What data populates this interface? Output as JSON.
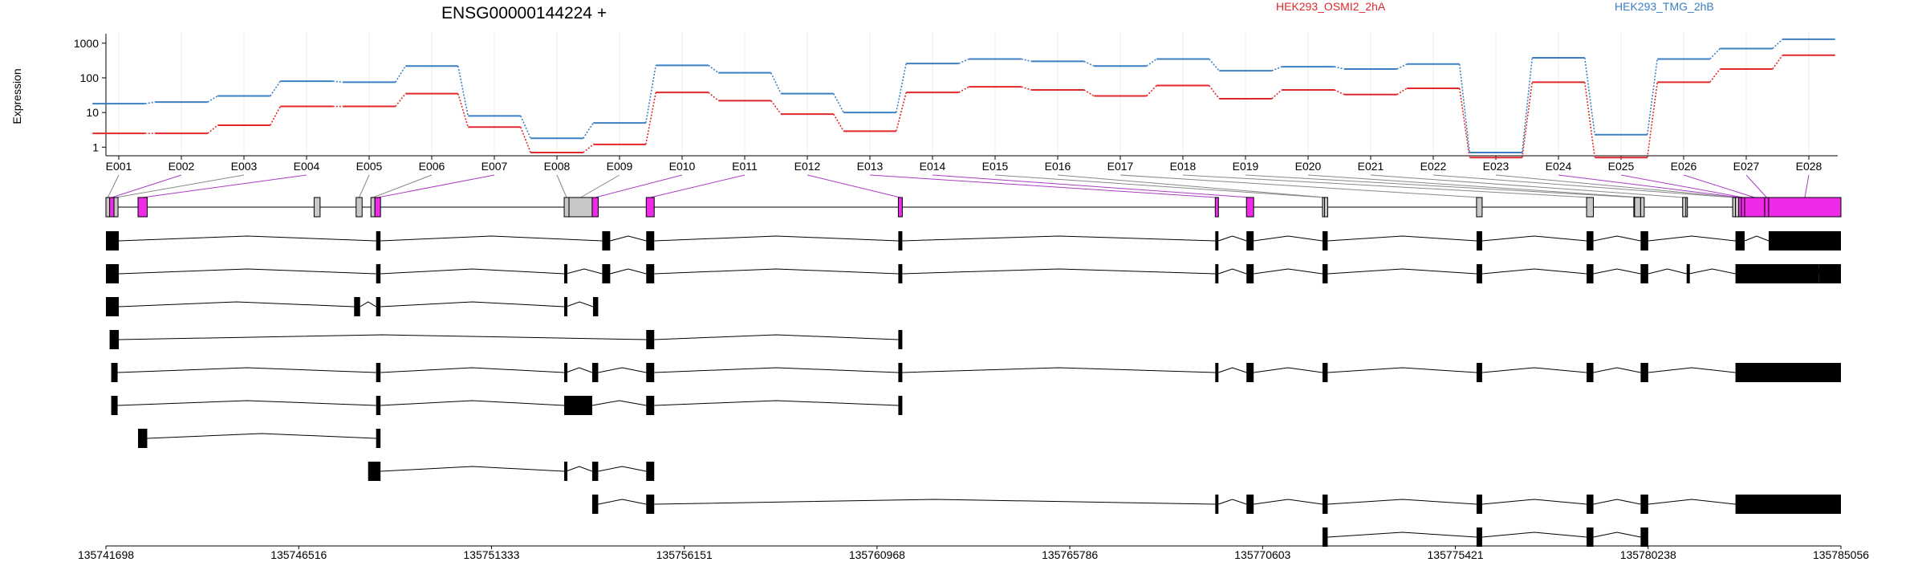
{
  "chart_data": {
    "type": "line",
    "title": "ENSG00000144224 +",
    "ylabel": "Expression",
    "y_scale": "log",
    "y_ticks": [
      "1",
      "10",
      "100",
      "1000"
    ],
    "ylim": [
      0.7,
      1600
    ],
    "grid": true,
    "legend_placement": "top-right",
    "categories": [
      "E001",
      "E002",
      "E003",
      "E004",
      "E005",
      "E006",
      "E007",
      "E008",
      "E009",
      "E010",
      "E011",
      "E012",
      "E013",
      "E014",
      "E015",
      "E016",
      "E017",
      "E018",
      "E019",
      "E020",
      "E021",
      "E022",
      "E023",
      "E024",
      "E025",
      "E026",
      "E027",
      "E028"
    ],
    "series": [
      {
        "name": "HEK293_OSMI2_2hA",
        "color": "#e0282b",
        "values": [
          2.5,
          2.5,
          4.3,
          15,
          15,
          35,
          3.8,
          0.7,
          1.2,
          38,
          22,
          9,
          2.9,
          38,
          55,
          45,
          30,
          60,
          25,
          45,
          33,
          50,
          0.5,
          75,
          0.5,
          75,
          180,
          450
        ]
      },
      {
        "name": "HEK293_TMG_2hB",
        "color": "#3b7fc4",
        "values": [
          18,
          20,
          30,
          80,
          75,
          220,
          8,
          1.8,
          5,
          230,
          140,
          35,
          10,
          260,
          350,
          300,
          220,
          350,
          160,
          210,
          180,
          250,
          0.7,
          380,
          2.3,
          350,
          700,
          1300
        ]
      }
    ],
    "genomic_axis": {
      "ticks": [
        "135741698",
        "135746516",
        "135751333",
        "135756151",
        "135760968",
        "135765786",
        "135770603",
        "135775421",
        "135780238",
        "135785056"
      ],
      "range": [
        135741698,
        135785056
      ]
    },
    "exon_bins": [
      {
        "label": "E001",
        "start": 135741698,
        "end": 135741790,
        "hl": false
      },
      {
        "label": "E002",
        "start": 135741790,
        "end": 135741900,
        "hl": true
      },
      {
        "label": "E003",
        "start": 135741900,
        "end": 135742000,
        "hl": false
      },
      {
        "label": "E004",
        "start": 135742500,
        "end": 135742730,
        "hl": true
      },
      {
        "label": "E005",
        "start": 135747950,
        "end": 135748100,
        "hl": false
      },
      {
        "label": "E006",
        "start": 135748320,
        "end": 135748420,
        "hl": false
      },
      {
        "label": "E007",
        "start": 135748420,
        "end": 135748560,
        "hl": true
      },
      {
        "label": "E008",
        "start": 135753150,
        "end": 135753270,
        "hl": false
      },
      {
        "label": "E009",
        "start": 135753270,
        "end": 135753850,
        "hl": false
      },
      {
        "label": "E010",
        "start": 135753850,
        "end": 135754000,
        "hl": true
      },
      {
        "label": "E011",
        "start": 135755200,
        "end": 135755400,
        "hl": true
      },
      {
        "label": "E012",
        "start": 135761500,
        "end": 135761600,
        "hl": true
      },
      {
        "label": "E013",
        "start": 135769420,
        "end": 135769500,
        "hl": true
      },
      {
        "label": "E014",
        "start": 135770200,
        "end": 135770380,
        "hl": true
      },
      {
        "label": "E015",
        "start": 135772100,
        "end": 135772150,
        "hl": false
      },
      {
        "label": "E016",
        "start": 135772150,
        "end": 135772230,
        "hl": false
      },
      {
        "label": "E017",
        "start": 135775950,
        "end": 135776090,
        "hl": false
      },
      {
        "label": "E018",
        "start": 135778700,
        "end": 135778870,
        "hl": false
      },
      {
        "label": "E019",
        "start": 135779900,
        "end": 135780050,
        "hl": false
      },
      {
        "label": "E020",
        "start": 135780050,
        "end": 135780140,
        "hl": false
      },
      {
        "label": "E021",
        "start": 135781100,
        "end": 135781180,
        "hl": false
      },
      {
        "label": "E022",
        "start": 135782350,
        "end": 135782420,
        "hl": false
      },
      {
        "label": "E023",
        "start": 135782420,
        "end": 135782500,
        "hl": false
      },
      {
        "label": "E024",
        "start": 135782500,
        "end": 135782570,
        "hl": true
      },
      {
        "label": "E025",
        "start": 135782570,
        "end": 135782650,
        "hl": true
      },
      {
        "label": "E026",
        "start": 135782650,
        "end": 135783150,
        "hl": true
      },
      {
        "label": "E027",
        "start": 135783150,
        "end": 135783250,
        "hl": true
      },
      {
        "label": "E028",
        "start": 135783250,
        "end": 135785056,
        "hl": true
      }
    ],
    "gene_model_gray_exons": [
      [
        135746900,
        135747050
      ],
      [
        135753880,
        135754000
      ],
      [
        135779880,
        135780020
      ],
      [
        135781120,
        135781220
      ]
    ],
    "transcripts": [
      {
        "exons": [
          [
            135741698,
            135742020
          ],
          [
            135748450,
            135748560
          ],
          [
            135754100,
            135754300
          ],
          [
            135755200,
            135755400
          ],
          [
            135761500,
            135761600
          ],
          [
            135769420,
            135769500
          ],
          [
            135770200,
            135770380
          ],
          [
            135772100,
            135772230
          ],
          [
            135775950,
            135776090
          ],
          [
            135778700,
            135778870
          ],
          [
            135780050,
            135780240
          ],
          [
            135782420,
            135782650
          ],
          [
            135783250,
            135785056
          ]
        ]
      },
      {
        "exons": [
          [
            135741698,
            135742020
          ],
          [
            135748450,
            135748560
          ],
          [
            135753150,
            135753200
          ],
          [
            135754100,
            135754300
          ],
          [
            135755200,
            135755400
          ],
          [
            135761500,
            135761600
          ],
          [
            135769420,
            135769500
          ],
          [
            135770200,
            135770380
          ],
          [
            135772100,
            135772230
          ],
          [
            135775950,
            135776090
          ],
          [
            135778700,
            135778870
          ],
          [
            135780050,
            135780240
          ],
          [
            135781200,
            135781260
          ],
          [
            135782420,
            135784500
          ],
          [
            135784500,
            135785056
          ]
        ]
      },
      {
        "exons": [
          [
            135741698,
            135742020
          ],
          [
            135747900,
            135748050
          ],
          [
            135748450,
            135748560
          ],
          [
            135753150,
            135753200
          ],
          [
            135753870,
            135754000
          ]
        ]
      },
      {
        "exons": [
          [
            135741790,
            135742020
          ],
          [
            135755200,
            135755400
          ],
          [
            135761500,
            135761600
          ]
        ]
      },
      {
        "exons": [
          [
            135741830,
            135741990
          ],
          [
            135748450,
            135748560
          ],
          [
            135753150,
            135753200
          ],
          [
            135753850,
            135754000
          ],
          [
            135755200,
            135755400
          ],
          [
            135761500,
            135761600
          ],
          [
            135769420,
            135769500
          ],
          [
            135770200,
            135770380
          ],
          [
            135772100,
            135772230
          ],
          [
            135775950,
            135776090
          ],
          [
            135778700,
            135778870
          ],
          [
            135780050,
            135780240
          ],
          [
            135782420,
            135785056
          ]
        ]
      },
      {
        "exons": [
          [
            135741830,
            135741990
          ],
          [
            135748450,
            135748560
          ],
          [
            135753150,
            135753850
          ],
          [
            135755200,
            135755400
          ],
          [
            135761500,
            135761600
          ]
        ]
      },
      {
        "exons": [
          [
            135742500,
            135742730
          ],
          [
            135748450,
            135748560
          ]
        ]
      },
      {
        "exons": [
          [
            135748250,
            135748560
          ],
          [
            135753150,
            135753200
          ],
          [
            135753850,
            135754000
          ],
          [
            135755200,
            135755400
          ]
        ]
      },
      {
        "exons": [
          [
            135753850,
            135754000
          ],
          [
            135755200,
            135755400
          ],
          [
            135769420,
            135769500
          ],
          [
            135770200,
            135770380
          ],
          [
            135772100,
            135772230
          ],
          [
            135775950,
            135776090
          ],
          [
            135778700,
            135778870
          ],
          [
            135780050,
            135780240
          ],
          [
            135782420,
            135785056
          ]
        ]
      },
      {
        "exons": [
          [
            135772100,
            135772230
          ],
          [
            135775950,
            135776090
          ],
          [
            135778700,
            135778870
          ],
          [
            135780050,
            135780240
          ]
        ]
      }
    ]
  }
}
